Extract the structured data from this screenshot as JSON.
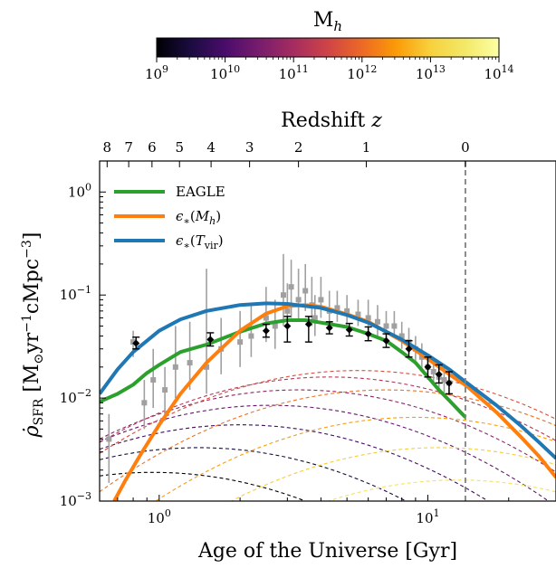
{
  "figure": {
    "colorbar_label": "M_h",
    "top_xlabel": "Redshift z",
    "xlabel": "Age of the Universe [Gyr]",
    "ylabel_parts": [
      "ρ̇",
      "SFR",
      " [M",
      "⊙",
      "yr",
      "−1",
      "cMpc",
      "−3",
      "]"
    ]
  },
  "colors": {
    "eagle": "#2ca02c",
    "eps_mh": "#ff7f0e",
    "eps_tvir": "#1f77b4",
    "obs_grey": "#a0a0a0",
    "obs_black": "#000000",
    "today_line": "#808080"
  },
  "colorbar": {
    "label": "M_h",
    "log_range": [
      9,
      14
    ],
    "colormap": "inferno",
    "tick_labels": [
      "10^9",
      "10^10",
      "10^11",
      "10^12",
      "10^13",
      "10^14"
    ]
  },
  "chart_data": {
    "type": "line",
    "xscale": "log",
    "yscale": "log",
    "xlim": [
      0.6,
      30
    ],
    "ylim": [
      0.001,
      2
    ],
    "xlabel": "Age of the Universe [Gyr]",
    "ylabel": "ρ̇_SFR [M⊙yr^−1cMpc^−3]",
    "x_ticks": [
      {
        "value": 1,
        "label": "10^0"
      },
      {
        "value": 10,
        "label": "10^1"
      }
    ],
    "y_ticks": [
      {
        "value": 0.001,
        "label": "10^−3"
      },
      {
        "value": 0.01,
        "label": "10^−2"
      },
      {
        "value": 0.1,
        "label": "10^−1"
      },
      {
        "value": 1,
        "label": "10^0"
      }
    ],
    "top_axis": {
      "label": "Redshift z",
      "ticks": [
        {
          "z": "8",
          "age": 0.64
        },
        {
          "z": "7",
          "age": 0.77
        },
        {
          "z": "6",
          "age": 0.94
        },
        {
          "z": "5",
          "age": 1.19
        },
        {
          "z": "4",
          "age": 1.56
        },
        {
          "z": "3",
          "age": 2.17
        },
        {
          "z": "2",
          "age": 3.3
        },
        {
          "z": "1",
          "age": 5.9
        },
        {
          "z": "0",
          "age": 13.8
        }
      ]
    },
    "today_line_age": 13.8,
    "legend_position": "upper-left",
    "series": [
      {
        "name": "EAGLE",
        "key": "eagle",
        "x": [
          0.6,
          0.7,
          0.8,
          0.9,
          1.0,
          1.2,
          1.5,
          2.0,
          2.5,
          3.0,
          3.5,
          4.0,
          5.0,
          6.0,
          7.0,
          8.0,
          9.0,
          10.0,
          11.0,
          12.0,
          13.8
        ],
        "y": [
          0.0092,
          0.011,
          0.0135,
          0.0175,
          0.021,
          0.028,
          0.033,
          0.044,
          0.053,
          0.057,
          0.057,
          0.054,
          0.049,
          0.042,
          0.036,
          0.028,
          0.022,
          0.016,
          0.012,
          0.0095,
          0.0065
        ]
      },
      {
        "name": "ε*(M_h)",
        "key": "eps_mh",
        "x": [
          0.68,
          0.75,
          0.85,
          1.0,
          1.2,
          1.5,
          2.0,
          2.5,
          3.0,
          3.5,
          4.0,
          5.0,
          6.0,
          8.0,
          10.0,
          12.0,
          14.0,
          18.0,
          22.0,
          26.0,
          30.0
        ],
        "y": [
          0.001,
          0.0016,
          0.0028,
          0.0055,
          0.011,
          0.022,
          0.045,
          0.066,
          0.078,
          0.08,
          0.077,
          0.065,
          0.055,
          0.036,
          0.024,
          0.017,
          0.013,
          0.0073,
          0.0043,
          0.0027,
          0.0017
        ]
      },
      {
        "name": "ε*(T_vir)",
        "key": "eps_tvir",
        "x": [
          0.6,
          0.7,
          0.8,
          1.0,
          1.2,
          1.5,
          2.0,
          2.5,
          3.0,
          4.0,
          5.0,
          6.0,
          8.0,
          10.0,
          12.0,
          14.0,
          18.0,
          22.0,
          26.0,
          30.0
        ],
        "y": [
          0.011,
          0.019,
          0.028,
          0.045,
          0.058,
          0.07,
          0.08,
          0.083,
          0.082,
          0.075,
          0.064,
          0.054,
          0.037,
          0.026,
          0.019,
          0.014,
          0.0085,
          0.0055,
          0.0037,
          0.0026
        ]
      }
    ],
    "mass_curves": {
      "log_mass": [
        9.0,
        9.5,
        10.0,
        10.5,
        11.0,
        11.5,
        12.0,
        12.5,
        13.0,
        13.5,
        14.0
      ],
      "peak_age": [
        0.95,
        1.4,
        2.0,
        2.6,
        3.3,
        4.3,
        5.5,
        7.0,
        9.0,
        11.0,
        13.0
      ],
      "peak_value": [
        0.0019,
        0.0033,
        0.0055,
        0.0085,
        0.012,
        0.016,
        0.0185,
        0.012,
        0.0065,
        0.0033,
        0.0016
      ],
      "log_width": [
        0.5,
        0.5,
        0.5,
        0.5,
        0.5,
        0.5,
        0.5,
        0.5,
        0.5,
        0.5,
        0.5
      ]
    },
    "observations_grey": {
      "x": [
        0.65,
        0.8,
        0.88,
        0.95,
        1.05,
        1.15,
        1.3,
        1.5,
        1.7,
        2.0,
        2.2,
        2.5,
        2.7,
        2.9,
        3.0,
        3.1,
        3.3,
        3.5,
        3.7,
        3.8,
        4.0,
        4.3,
        4.6,
        5.0,
        5.5,
        6.0,
        6.5,
        7.0,
        7.5,
        8.0,
        8.5,
        9.0,
        9.5,
        10.0,
        10.5,
        11.0,
        11.5,
        12.0
      ],
      "y": [
        0.004,
        0.035,
        0.009,
        0.015,
        0.012,
        0.02,
        0.022,
        0.02,
        0.03,
        0.035,
        0.04,
        0.06,
        0.05,
        0.1,
        0.07,
        0.12,
        0.09,
        0.11,
        0.08,
        0.06,
        0.09,
        0.07,
        0.075,
        0.07,
        0.065,
        0.06,
        0.055,
        0.05,
        0.05,
        0.04,
        0.035,
        0.03,
        0.025,
        0.02,
        0.018,
        0.016,
        0.015,
        0.014
      ],
      "y_lo": [
        0.0015,
        0.025,
        0.005,
        0.008,
        0.006,
        0.01,
        0.012,
        0.011,
        0.017,
        0.02,
        0.025,
        0.035,
        0.03,
        0.05,
        0.045,
        0.06,
        0.055,
        0.07,
        0.05,
        0.04,
        0.06,
        0.05,
        0.055,
        0.05,
        0.05,
        0.045,
        0.04,
        0.038,
        0.038,
        0.03,
        0.027,
        0.023,
        0.019,
        0.015,
        0.014,
        0.012,
        0.011,
        0.011
      ],
      "y_hi": [
        0.007,
        0.045,
        0.015,
        0.03,
        0.02,
        0.05,
        0.055,
        0.18,
        0.06,
        0.07,
        0.08,
        0.12,
        0.09,
        0.25,
        0.13,
        0.22,
        0.18,
        0.2,
        0.15,
        0.1,
        0.15,
        0.11,
        0.11,
        0.1,
        0.09,
        0.09,
        0.08,
        0.07,
        0.07,
        0.055,
        0.048,
        0.04,
        0.034,
        0.027,
        0.024,
        0.021,
        0.02,
        0.018
      ]
    },
    "observations_black": {
      "x": [
        0.82,
        1.55,
        2.5,
        3.0,
        3.6,
        4.3,
        5.1,
        6.0,
        7.0,
        8.5,
        10.0,
        11.0,
        12.0
      ],
      "y": [
        0.034,
        0.037,
        0.045,
        0.05,
        0.052,
        0.048,
        0.046,
        0.042,
        0.036,
        0.03,
        0.02,
        0.017,
        0.014
      ],
      "y_lo": [
        0.03,
        0.032,
        0.039,
        0.035,
        0.035,
        0.042,
        0.04,
        0.036,
        0.031,
        0.025,
        0.016,
        0.014,
        0.011
      ],
      "y_hi": [
        0.039,
        0.043,
        0.052,
        0.062,
        0.062,
        0.055,
        0.053,
        0.049,
        0.042,
        0.036,
        0.025,
        0.021,
        0.018
      ]
    }
  }
}
